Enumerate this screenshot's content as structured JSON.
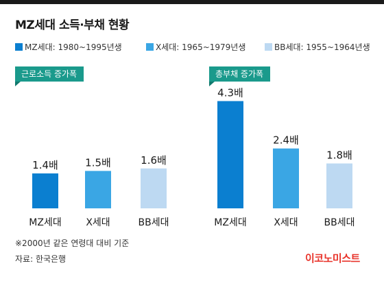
{
  "header": {
    "title": "MZ세대 소득·부채 현황"
  },
  "legend": [
    {
      "label": "MZ세대: 1980~1995년생",
      "color": "#0b7fd0"
    },
    {
      "label": "X세대: 1965~1979년생",
      "color": "#3aa6e4"
    },
    {
      "label": "BB세대: 1955~1964년생",
      "color": "#bdd9f2"
    }
  ],
  "chart_data": [
    {
      "type": "bar",
      "tag": "근로소득 증가폭",
      "categories": [
        "MZ세대",
        "X세대",
        "BB세대"
      ],
      "values": [
        1.4,
        1.5,
        1.6
      ],
      "value_labels": [
        "1.4배",
        "1.5배",
        "1.6배"
      ],
      "colors": [
        "#0b7fd0",
        "#3aa6e4",
        "#bdd9f2"
      ]
    },
    {
      "type": "bar",
      "tag": "총부채 증가폭",
      "categories": [
        "MZ세대",
        "X세대",
        "BB세대"
      ],
      "values": [
        4.3,
        2.4,
        1.8
      ],
      "value_labels": [
        "4.3배",
        "2.4배",
        "1.8배"
      ],
      "colors": [
        "#0b7fd0",
        "#3aa6e4",
        "#bdd9f2"
      ]
    }
  ],
  "footnotes": {
    "note": "※2000년 같은 연령대 대비 기준",
    "source": "자료: 한국은행"
  },
  "logo": {
    "text": "이코노미스트"
  }
}
